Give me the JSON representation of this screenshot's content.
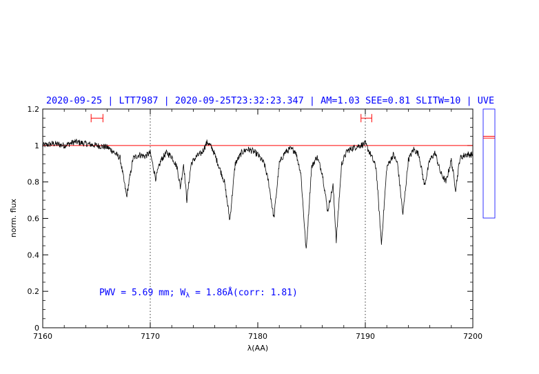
{
  "header": {
    "title": "2020-09-25 | LTT7987 | 2020-09-25T23:32:23.347 | AM=1.03 SEE=0.81 SLITW=10 | UVE"
  },
  "annotation": {
    "pwv_prefix": "PWV = 5.69 mm; W",
    "pwv_subscript": "λ",
    "pwv_suffix": " = 1.86Å(corr: 1.81)"
  },
  "colors": {
    "spectrum": "#000000",
    "continuum": "#ff0000",
    "text": "#0000ff",
    "frame": "#000000",
    "side_panel": "#0000ff"
  },
  "chart_data": {
    "type": "line",
    "title": "2020-09-25 | LTT7987 | 2020-09-25T23:32:23.347 | AM=1.03 SEE=0.81 SLITW=10 | UVE",
    "xlabel": "λ(AA)",
    "ylabel": "norm. flux",
    "xlim": [
      7160,
      7200
    ],
    "ylim": [
      0,
      1.2
    ],
    "x_ticks": [
      7160,
      7170,
      7180,
      7190,
      7200
    ],
    "x_tick_labels": [
      "7160",
      "7170",
      "7180",
      "7190",
      "7200"
    ],
    "y_ticks": [
      0,
      0.2,
      0.4,
      0.6,
      0.8,
      1,
      1.2
    ],
    "y_tick_labels": [
      "0",
      "0.2",
      "0.4",
      "0.6",
      "0.8",
      "1",
      "1.2"
    ],
    "grid": false,
    "vertical_dotted_lines": [
      7170,
      7190
    ],
    "continuum_level": 1.0,
    "continuum_windows": [
      {
        "x": [
          7164.5,
          7165.6
        ],
        "y": 1.15
      },
      {
        "x": [
          7189.6,
          7190.6
        ],
        "y": 1.15
      }
    ],
    "series": [
      {
        "points": [
          [
            7160.0,
            1.0
          ],
          [
            7161.0,
            1.01
          ],
          [
            7162.0,
            1.0
          ],
          [
            7163.0,
            1.02
          ],
          [
            7164.0,
            1.01
          ],
          [
            7165.0,
            1.0
          ],
          [
            7166.0,
            0.99
          ],
          [
            7166.5,
            0.97
          ],
          [
            7167.2,
            0.93
          ],
          [
            7167.8,
            0.72
          ],
          [
            7168.4,
            0.93
          ],
          [
            7169.0,
            0.95
          ],
          [
            7169.5,
            0.94
          ],
          [
            7170.0,
            0.96
          ],
          [
            7170.5,
            0.82
          ],
          [
            7171.0,
            0.92
          ],
          [
            7171.5,
            0.96
          ],
          [
            7172.0,
            0.94
          ],
          [
            7172.5,
            0.88
          ],
          [
            7172.8,
            0.77
          ],
          [
            7173.1,
            0.9
          ],
          [
            7173.4,
            0.7
          ],
          [
            7173.8,
            0.9
          ],
          [
            7174.3,
            0.94
          ],
          [
            7174.8,
            0.96
          ],
          [
            7175.3,
            1.02
          ],
          [
            7175.8,
            0.98
          ],
          [
            7176.3,
            0.9
          ],
          [
            7176.9,
            0.8
          ],
          [
            7177.4,
            0.59
          ],
          [
            7177.9,
            0.9
          ],
          [
            7178.5,
            0.96
          ],
          [
            7179.0,
            0.98
          ],
          [
            7179.5,
            0.97
          ],
          [
            7180.0,
            0.95
          ],
          [
            7180.6,
            0.9
          ],
          [
            7181.0,
            0.8
          ],
          [
            7181.5,
            0.6
          ],
          [
            7182.0,
            0.9
          ],
          [
            7182.5,
            0.96
          ],
          [
            7183.0,
            0.98
          ],
          [
            7183.5,
            0.97
          ],
          [
            7184.0,
            0.85
          ],
          [
            7184.5,
            0.42
          ],
          [
            7185.0,
            0.88
          ],
          [
            7185.5,
            0.94
          ],
          [
            7186.0,
            0.85
          ],
          [
            7186.5,
            0.64
          ],
          [
            7187.0,
            0.78
          ],
          [
            7187.3,
            0.48
          ],
          [
            7187.8,
            0.9
          ],
          [
            7188.3,
            0.97
          ],
          [
            7189.0,
            0.99
          ],
          [
            7189.5,
            1.0
          ],
          [
            7190.0,
            1.01
          ],
          [
            7190.5,
            0.95
          ],
          [
            7191.0,
            0.88
          ],
          [
            7191.5,
            0.46
          ],
          [
            7192.0,
            0.88
          ],
          [
            7192.6,
            0.95
          ],
          [
            7193.0,
            0.9
          ],
          [
            7193.5,
            0.62
          ],
          [
            7194.0,
            0.92
          ],
          [
            7194.5,
            0.98
          ],
          [
            7195.0,
            0.95
          ],
          [
            7195.5,
            0.78
          ],
          [
            7196.0,
            0.92
          ],
          [
            7196.5,
            0.96
          ],
          [
            7197.0,
            0.85
          ],
          [
            7197.5,
            0.8
          ],
          [
            7198.0,
            0.92
          ],
          [
            7198.4,
            0.76
          ],
          [
            7198.8,
            0.93
          ],
          [
            7199.3,
            0.95
          ],
          [
            7200.0,
            0.95
          ]
        ]
      }
    ],
    "side_panel": {
      "ylim": [
        0.6,
        1.2
      ],
      "marker_levels": [
        1.04,
        1.05
      ]
    }
  }
}
